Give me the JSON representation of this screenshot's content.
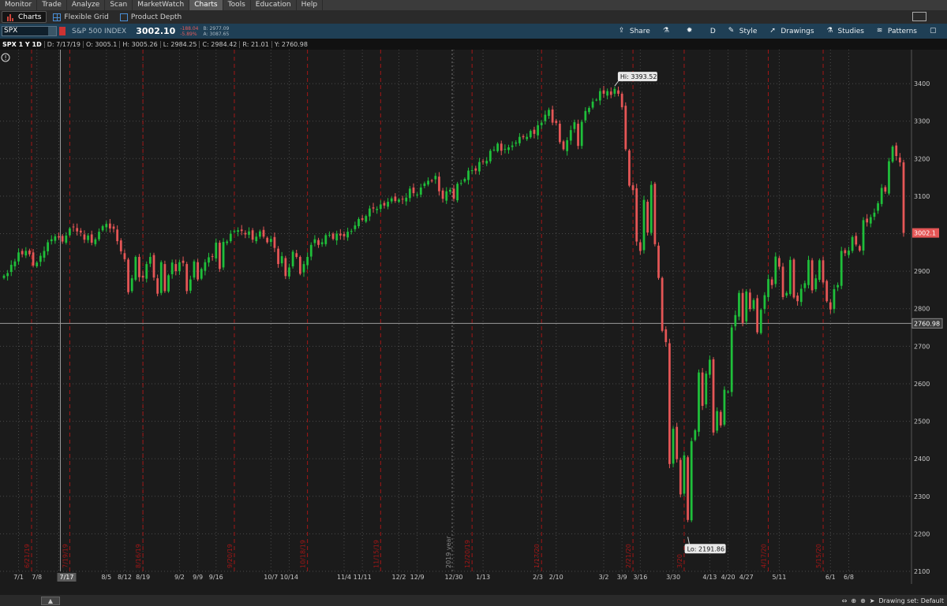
{
  "menu": [
    "Monitor",
    "Trade",
    "Analyze",
    "Scan",
    "MarketWatch",
    "Charts",
    "Tools",
    "Education",
    "Help"
  ],
  "menu_active": "Charts",
  "tabs": [
    {
      "label": "Charts",
      "active": true,
      "icon": "bar-chart-icon"
    },
    {
      "label": "Flexible Grid",
      "active": false,
      "icon": "grid-icon"
    },
    {
      "label": "Product Depth",
      "active": false,
      "icon": "depth-icon"
    }
  ],
  "symbol": {
    "ticker": "SPX",
    "name": "S&P 500 INDEX",
    "last": "3002.10",
    "change": "-188.04",
    "change_pct": "-5.89%",
    "bid": "B: 2977.09",
    "ask": "A: 3087.65"
  },
  "toolbar": {
    "share": "Share",
    "period": "D",
    "style": "Style",
    "drawings": "Drawings",
    "studies": "Studies",
    "patterns": "Patterns"
  },
  "info": {
    "symbol": "SPX 1 Y 1D",
    "date": "D: 7/17/19",
    "open": "O: 3005.1",
    "high": "H: 3005.26",
    "low": "L: 2984.25",
    "close": "C: 2984.42",
    "range": "R: 21.01",
    "y": "Y: 2760.98"
  },
  "chart_data": {
    "type": "candlestick",
    "ylim": [
      2100,
      3480
    ],
    "y_ticks": [
      2100,
      2200,
      2300,
      2400,
      2500,
      2600,
      2700,
      2800,
      2900,
      3000,
      3100,
      3200,
      3300,
      3400
    ],
    "x_tick_labels": [
      "7/1",
      "7/8",
      "7/17",
      "8/5",
      "8/12",
      "8/19",
      "9/2",
      "9/9",
      "9/16",
      "10/7",
      "10/14",
      "11/4",
      "11/11",
      "12/2",
      "12/9",
      "12/30",
      "1/13",
      "2/3",
      "2/10",
      "3/2",
      "3/9",
      "3/16",
      "3/30",
      "4/13",
      "4/20",
      "4/27",
      "5/11",
      "6/1",
      "6/8"
    ],
    "event_labels": [
      "6/21/19",
      "7/19/19",
      "8/16/19",
      "9/20/19",
      "10/18/19",
      "11/15/19",
      "12/20/19",
      "1/17/20",
      "2/21/20",
      "3/20",
      "4/17/20",
      "5/15/20"
    ],
    "year_label": "2019 year",
    "last_price_label": "3002.1",
    "crosshair_label": "2760.98",
    "crosshair_date": "7/17",
    "high_annotation": "Hi: 3393.52",
    "low_annotation": "Lo: 2191.86",
    "high_value": 3393.52,
    "low_value": 2191.86,
    "grid": true,
    "colors": {
      "up": "#1fbf3a",
      "down": "#e55656",
      "event": "#a31616",
      "grid": "#4a4a4a"
    },
    "closes": [
      2888,
      2895,
      2917,
      2926,
      2950,
      2945,
      2954,
      2945,
      2915,
      2923,
      2941,
      2954,
      2977,
      2985,
      2993,
      2990,
      2979,
      2995,
      3014,
      3017,
      3006,
      3003,
      2984,
      2995,
      2976,
      2985,
      3005,
      3020,
      3026,
      3014,
      3013,
      2980,
      2953,
      2932,
      2844,
      2881,
      2938,
      2884,
      2883,
      2919,
      2938,
      2883,
      2840,
      2924,
      2847,
      2889,
      2923,
      2900,
      2924,
      2922,
      2847,
      2878,
      2926,
      2878,
      2906,
      2924,
      2937,
      2938,
      2976,
      2906,
      2978,
      2979,
      3000,
      3007,
      3009,
      3007,
      2998,
      3006,
      2984,
      2992,
      3006,
      2992,
      2977,
      2986,
      2962,
      2919,
      2940,
      2887,
      2910,
      2952,
      2938,
      2893,
      2919,
      2938,
      2970,
      2985,
      2970,
      2977,
      2996,
      2997,
      2986,
      3000,
      2995,
      2993,
      3005,
      3007,
      3022,
      3039,
      3037,
      3047,
      3067,
      3067,
      3066,
      3078,
      3075,
      3085,
      3094,
      3087,
      3091,
      3091,
      3096,
      3120,
      3108,
      3104,
      3123,
      3134,
      3141,
      3140,
      3154,
      3113,
      3093,
      3113,
      3117,
      3093,
      3133,
      3135,
      3146,
      3168,
      3169,
      3168,
      3191,
      3192,
      3194,
      3221,
      3224,
      3240,
      3221,
      3226,
      3230,
      3235,
      3243,
      3258,
      3257,
      3258,
      3274,
      3266,
      3289,
      3296,
      3317,
      3330,
      3296,
      3295,
      3244,
      3225,
      3249,
      3276,
      3297,
      3234,
      3298,
      3327,
      3335,
      3352,
      3357,
      3380,
      3373,
      3380,
      3370,
      3386,
      3373,
      3337,
      3225,
      3128,
      3116,
      2979,
      2954,
      3090,
      3003,
      3130,
      2972,
      2882,
      2741,
      2711,
      2386,
      2480,
      2399,
      2305,
      2409,
      2237,
      2447,
      2476,
      2630,
      2541,
      2627,
      2664,
      2470,
      2527,
      2489,
      2584,
      2579,
      2750,
      2783,
      2842,
      2762,
      2846,
      2799,
      2823,
      2737,
      2797,
      2836,
      2879,
      2863,
      2939,
      2912,
      2831,
      2842,
      2930,
      2830,
      2820,
      2853,
      2868,
      2930,
      2849,
      2881,
      2929,
      2870,
      2820,
      2798,
      2852,
      2863,
      2954,
      2948,
      2955,
      2991,
      2971,
      2955,
      3036,
      3030,
      3044,
      3056,
      3081,
      3122,
      3112,
      3193,
      3232,
      3207,
      3190,
      3002
    ]
  }
}
